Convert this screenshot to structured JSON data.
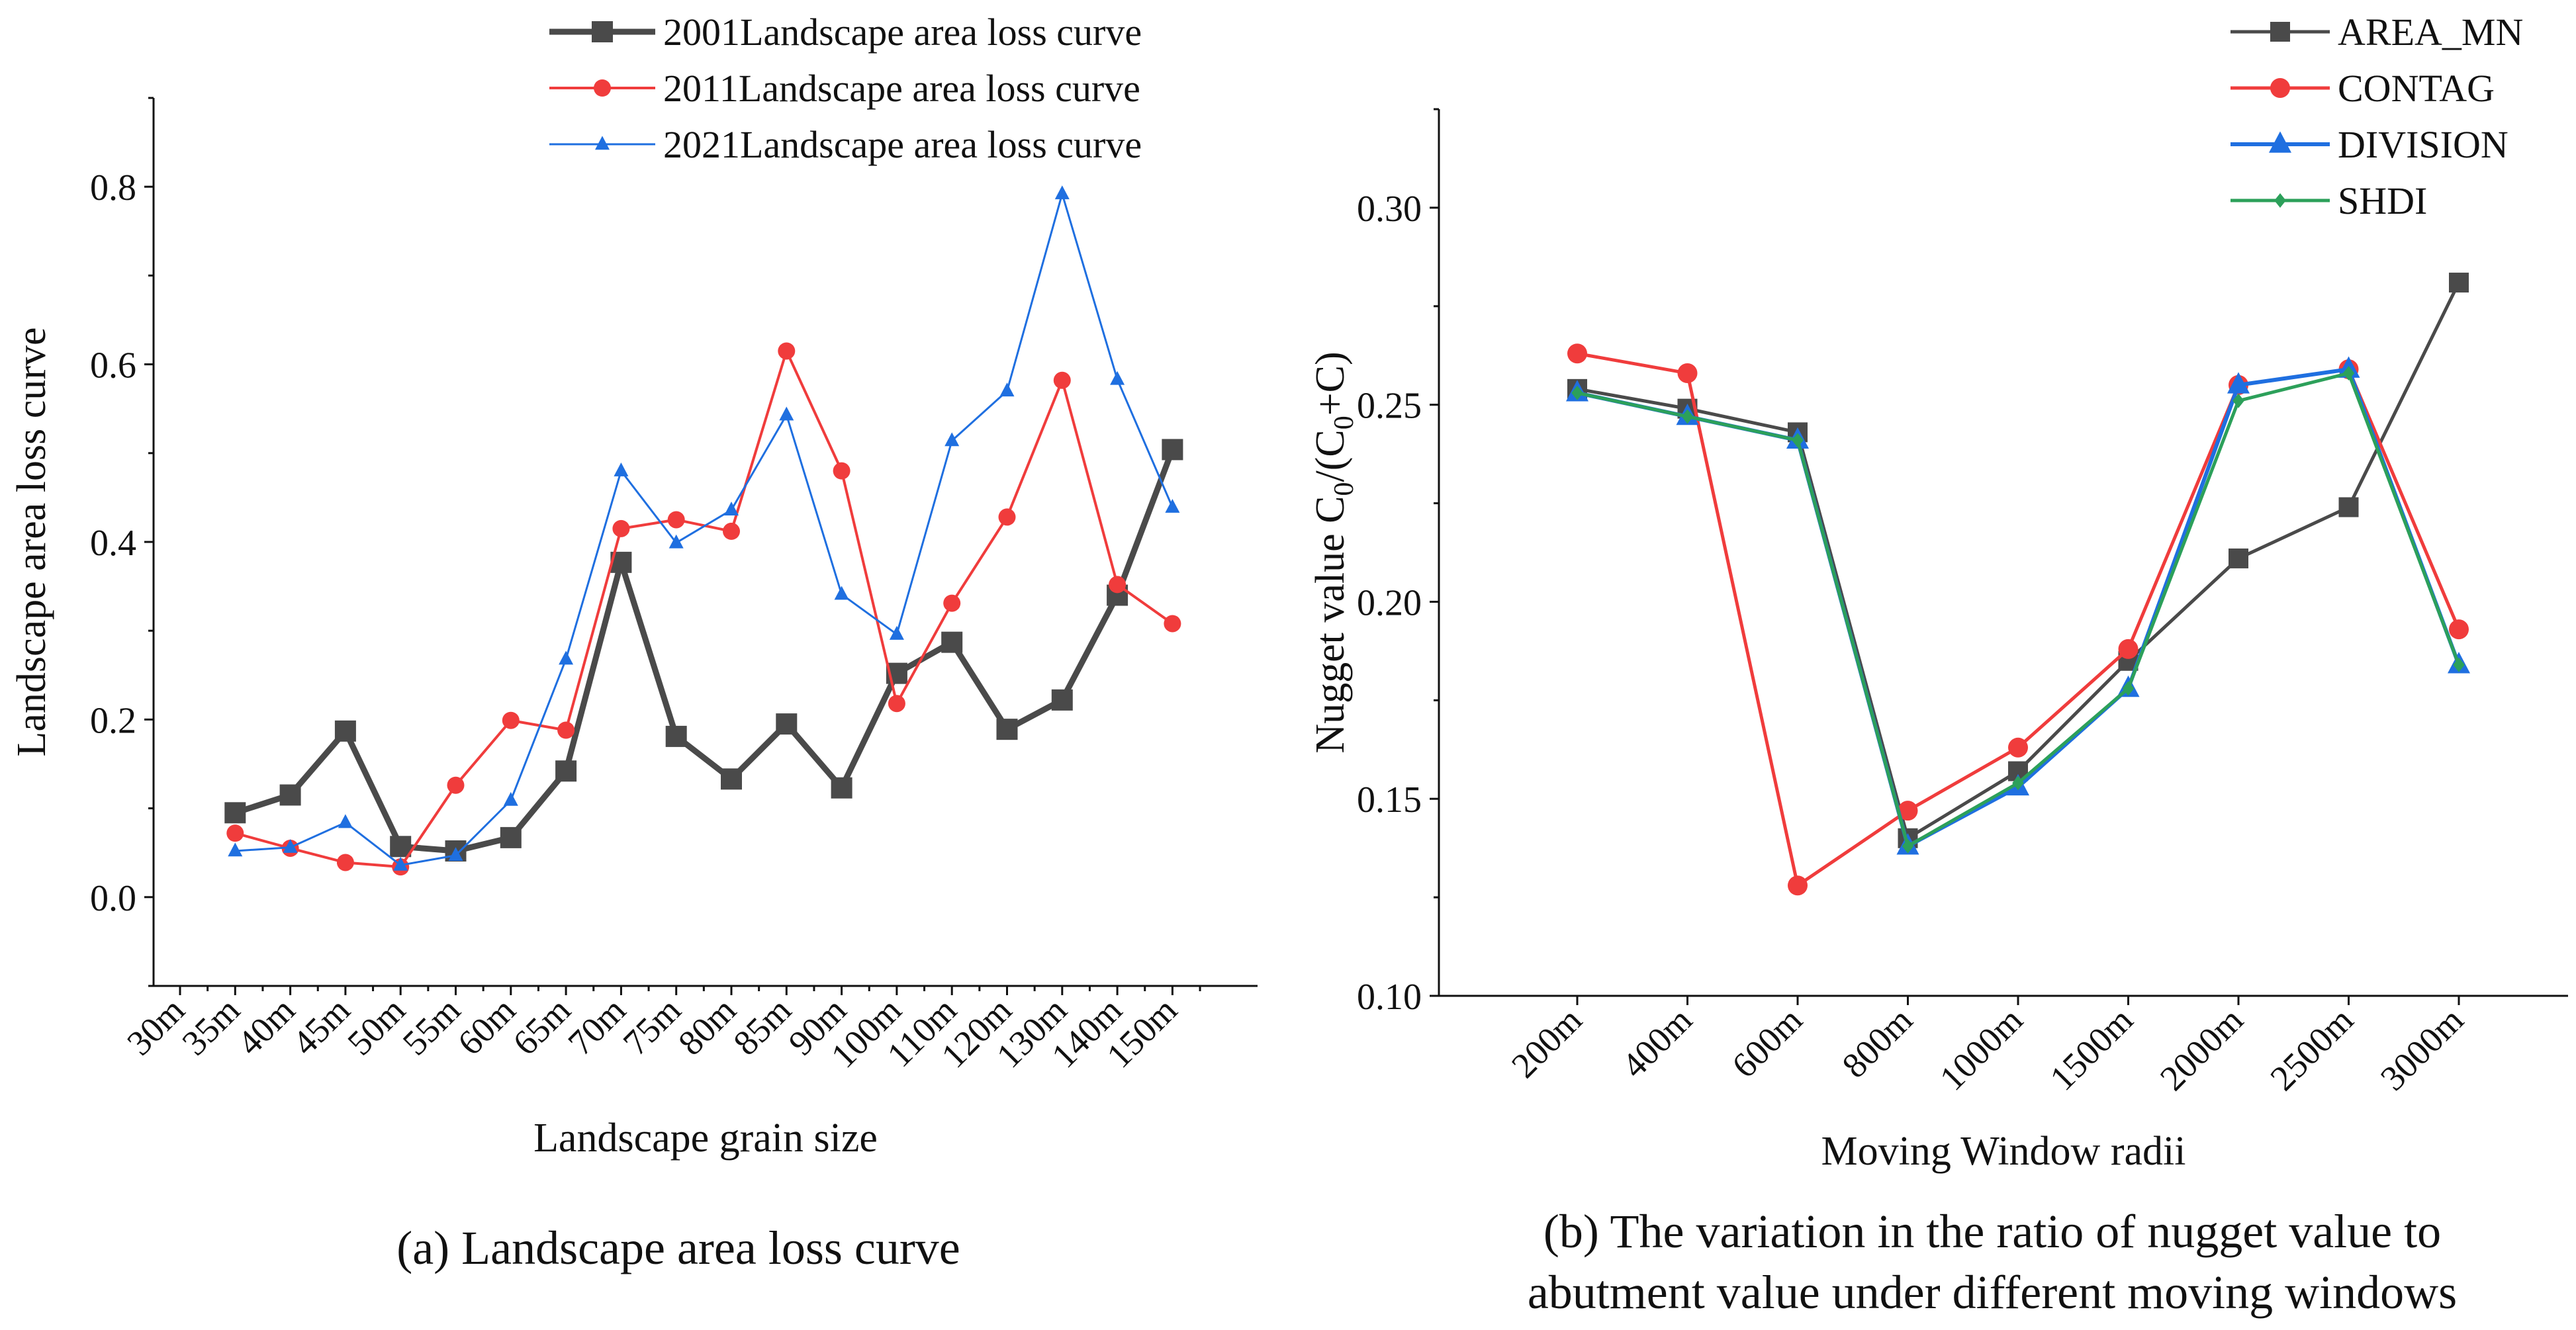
{
  "captions": {
    "a": "(a) Landscape area loss curve",
    "b_line1": "(b) The variation in the ratio of nugget value to",
    "b_line2": "abutment value under different moving windows"
  },
  "chart_data": [
    {
      "id": "a",
      "type": "line",
      "title": "",
      "xlabel": "Landscape grain size",
      "ylabel": "Landscape area loss curve",
      "categories": [
        "30m",
        "35m",
        "40m",
        "45m",
        "50m",
        "55m",
        "60m",
        "65m",
        "70m",
        "75m",
        "80m",
        "85m",
        "90m",
        "100m",
        "110m",
        "120m",
        "130m",
        "140m",
        "150m"
      ],
      "ylim": [
        -0.1,
        0.9
      ],
      "yticks": [
        0.0,
        0.2,
        0.4,
        0.6,
        0.8
      ],
      "ytick_labels": [
        "0.0",
        "0.2",
        "0.4",
        "0.6",
        "0.8"
      ],
      "legend_position": "top-right",
      "series": [
        {
          "name": "2001Landscape area loss curve",
          "color": "#4a4a4a",
          "marker": "square",
          "values": [
            null,
            0.095,
            0.115,
            0.187,
            0.057,
            0.052,
            0.067,
            0.142,
            0.377,
            0.181,
            0.133,
            0.195,
            0.123,
            0.252,
            0.287,
            0.189,
            0.222,
            0.34,
            0.504
          ]
        },
        {
          "name": "2011Landscape area loss curve",
          "color": "#f03c3c",
          "marker": "circle",
          "values": [
            null,
            0.072,
            0.055,
            0.039,
            0.034,
            0.126,
            0.199,
            0.188,
            0.415,
            0.425,
            0.412,
            0.615,
            0.48,
            0.218,
            0.331,
            0.428,
            0.582,
            0.352,
            0.308
          ]
        },
        {
          "name": "2021Landscape area loss curve",
          "color": "#1f6fe0",
          "marker": "triangle",
          "values": [
            null,
            0.052,
            0.056,
            0.084,
            0.036,
            0.047,
            0.109,
            0.268,
            0.48,
            0.399,
            0.436,
            0.543,
            0.341,
            0.296,
            0.514,
            0.57,
            0.792,
            0.583,
            0.439
          ]
        }
      ]
    },
    {
      "id": "b",
      "type": "line",
      "title": "",
      "xlabel": "Moving Window radii",
      "ylabel_main": "Nugget value C",
      "ylabel_sub0": "0",
      "ylabel_mid": "/(C",
      "ylabel_sub1": "0",
      "ylabel_tail": "+C)",
      "categories": [
        "200m",
        "400m",
        "600m",
        "800m",
        "1000m",
        "1500m",
        "2000m",
        "2500m",
        "3000m"
      ],
      "ylim": [
        0.1,
        0.325
      ],
      "yticks": [
        0.1,
        0.15,
        0.2,
        0.25,
        0.3
      ],
      "ytick_labels": [
        "0.10",
        "0.15",
        "0.20",
        "0.25",
        "0.30"
      ],
      "legend_position": "top-right",
      "series": [
        {
          "name": "AREA_MN",
          "color": "#4a4a4a",
          "marker": "square",
          "values": [
            0.254,
            0.249,
            0.243,
            0.14,
            0.157,
            0.185,
            0.211,
            0.224,
            0.281
          ]
        },
        {
          "name": "CONTAG",
          "color": "#f03c3c",
          "marker": "circle",
          "values": [
            0.263,
            0.258,
            0.128,
            0.147,
            0.163,
            0.188,
            0.255,
            0.259,
            0.193
          ]
        },
        {
          "name": "DIVISION",
          "color": "#1f6fe0",
          "marker": "triangle",
          "values": [
            0.253,
            0.247,
            0.241,
            0.138,
            0.153,
            0.178,
            0.255,
            0.259,
            0.184
          ]
        },
        {
          "name": "SHDI",
          "color": "#2ca05a",
          "marker": "diamond",
          "values": [
            0.253,
            0.247,
            0.241,
            0.138,
            0.154,
            0.178,
            0.251,
            0.258,
            0.184
          ]
        }
      ]
    }
  ]
}
